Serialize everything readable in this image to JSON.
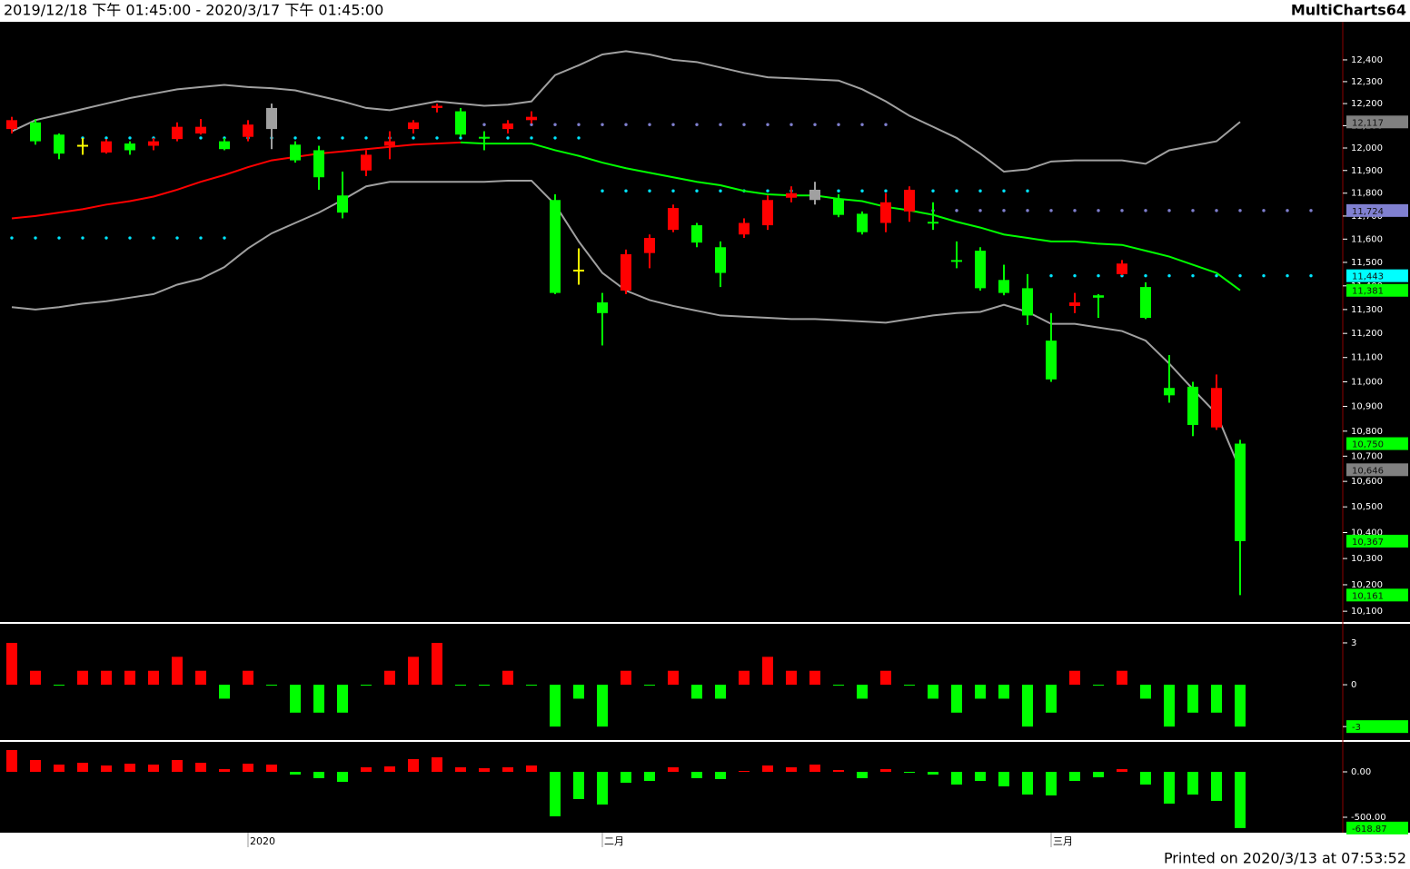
{
  "header": {
    "range": "2019/12/18 下午 01:45:00 - 2020/3/17 下午 01:45:00",
    "app": "MultiCharts64"
  },
  "footer": "Printed on 2020/3/13 at 07:53:52",
  "chart_data": [
    {
      "type": "candlestick",
      "categories": [
        null,
        null,
        null,
        null,
        null,
        null,
        null,
        null,
        null,
        null,
        "2020",
        null,
        null,
        null,
        null,
        null,
        null,
        null,
        null,
        null,
        null,
        null,
        null,
        null,
        null,
        "二月",
        null,
        null,
        null,
        null,
        null,
        null,
        null,
        null,
        null,
        null,
        null,
        null,
        null,
        null,
        null,
        null,
        null,
        null,
        "三月",
        null,
        null,
        null,
        null,
        null,
        null,
        null,
        null
      ],
      "open": [
        12085,
        12115,
        12060,
        12010,
        11980,
        12020,
        12010,
        12040,
        12065,
        12030,
        12050,
        12180,
        12015,
        11990,
        11790,
        11900,
        12010,
        12085,
        12180,
        12165,
        12050,
        12085,
        12125,
        11770,
        11465,
        11330,
        11380,
        11540,
        11640,
        11660,
        11565,
        11620,
        11660,
        11780,
        11815,
        11775,
        11710,
        11670,
        11720,
        11675,
        11510,
        11550,
        11425,
        11390,
        11170,
        11315,
        11360,
        11450,
        11395,
        10975,
        10980,
        10815,
        10750
      ],
      "high": [
        12140,
        12130,
        12065,
        12045,
        12040,
        12030,
        12045,
        12115,
        12130,
        12045,
        12125,
        12200,
        12030,
        12010,
        11895,
        11990,
        12075,
        12125,
        12200,
        12180,
        12075,
        12125,
        12165,
        11795,
        11560,
        11370,
        11555,
        11620,
        11750,
        11670,
        11590,
        11690,
        11790,
        11830,
        11850,
        11795,
        11720,
        11800,
        11830,
        11760,
        11590,
        11565,
        11490,
        11450,
        11285,
        11370,
        11365,
        11510,
        11415,
        11110,
        11000,
        11030,
        10765
      ],
      "low": [
        12065,
        12015,
        11950,
        11970,
        11975,
        11970,
        11990,
        12030,
        12060,
        11990,
        12030,
        11995,
        11935,
        11815,
        11690,
        11875,
        11950,
        12065,
        12160,
        12050,
        11990,
        12065,
        12110,
        11365,
        11405,
        11150,
        11365,
        11475,
        11630,
        11565,
        11395,
        11605,
        11640,
        11760,
        11750,
        11695,
        11620,
        11630,
        11675,
        11640,
        11475,
        11380,
        11360,
        11235,
        11000,
        11285,
        11265,
        11445,
        11260,
        10915,
        10780,
        10805,
        10161
      ],
      "close": [
        12125,
        12030,
        11975,
        12010,
        12030,
        11990,
        12030,
        12095,
        12095,
        11995,
        12105,
        12085,
        11945,
        11870,
        11715,
        11970,
        12030,
        12115,
        12190,
        12060,
        12045,
        12110,
        12140,
        11370,
        11465,
        11285,
        11535,
        11605,
        11735,
        11585,
        11455,
        11670,
        11770,
        11800,
        11770,
        11705,
        11630,
        11760,
        11815,
        11670,
        11505,
        11390,
        11370,
        11275,
        11010,
        11330,
        11350,
        11495,
        11265,
        10945,
        10825,
        10975,
        10367
      ],
      "candle_colors": [
        "#ff0000",
        "#00ff00",
        "#00ff00",
        "#ffff00",
        "#ff0000",
        "#00ff00",
        "#ff0000",
        "#ff0000",
        "#ff0000",
        "#00ff00",
        "#ff0000",
        "#a0a0a0",
        "#00ff00",
        "#00ff00",
        "#00ff00",
        "#ff0000",
        "#ff0000",
        "#ff0000",
        "#ff0000",
        "#00ff00",
        "#00ff00",
        "#ff0000",
        "#ff0000",
        "#00ff00",
        "#ffff00",
        "#00ff00",
        "#ff0000",
        "#ff0000",
        "#ff0000",
        "#00ff00",
        "#00ff00",
        "#ff0000",
        "#ff0000",
        "#ff0000",
        "#a0a0a0",
        "#00ff00",
        "#00ff00",
        "#ff0000",
        "#ff0000",
        "#00ff00",
        "#00ff00",
        "#00ff00",
        "#00ff00",
        "#00ff00",
        "#00ff00",
        "#ff0000",
        "#00ff00",
        "#ff0000",
        "#00ff00",
        "#00ff00",
        "#00ff00",
        "#ff0000",
        "#00ff00"
      ],
      "series": [
        {
          "color": "#a0a0a0",
          "values": [
            12075,
            12125,
            12150,
            12175,
            12200,
            12225,
            12245,
            12265,
            12275,
            12285,
            12275,
            12270,
            12260,
            12235,
            12210,
            12180,
            12170,
            12190,
            12210,
            12200,
            12190,
            12195,
            12210,
            12330,
            12375,
            12425,
            12440,
            12425,
            12400,
            12390,
            12365,
            12340,
            12320,
            12315,
            12310,
            12305,
            12265,
            12210,
            12145,
            12095,
            12045,
            11975,
            11895,
            11905,
            11940,
            11945,
            11945,
            11945,
            11930,
            11990,
            12010,
            12030,
            12117
          ]
        },
        {
          "color": "#a0a0a0",
          "values": [
            11310,
            11300,
            11310,
            11325,
            11335,
            11350,
            11365,
            11405,
            11430,
            11480,
            11560,
            11625,
            11670,
            11715,
            11770,
            11830,
            11850,
            11850,
            11850,
            11850,
            11850,
            11855,
            11855,
            11750,
            11590,
            11455,
            11380,
            11340,
            11315,
            11295,
            11275,
            11270,
            11265,
            11260,
            11260,
            11255,
            11250,
            11245,
            11260,
            11275,
            11285,
            11290,
            11320,
            11290,
            11240,
            11240,
            11225,
            11210,
            11170,
            11075,
            10970,
            10870,
            10646
          ]
        },
        {
          "rising_color": "#ff0000",
          "falling_color": "#00ff00",
          "values": [
            11690,
            11700,
            11715,
            11730,
            11750,
            11765,
            11785,
            11815,
            11850,
            11880,
            11915,
            11945,
            11960,
            11975,
            11985,
            11995,
            12005,
            12015,
            12020,
            12025,
            12020,
            12020,
            12020,
            11990,
            11965,
            11935,
            11910,
            11890,
            11870,
            11850,
            11835,
            11810,
            11795,
            11790,
            11790,
            11775,
            11765,
            11740,
            11725,
            11705,
            11675,
            11650,
            11620,
            11605,
            11590,
            11590,
            11580,
            11575,
            11550,
            11525,
            11490,
            11455,
            11381
          ]
        }
      ],
      "levels": [
        {
          "value": 11605,
          "color": "#00e5ff",
          "from": 0,
          "to": 9
        },
        {
          "value": 12045,
          "color": "#00e5ff",
          "from": 3,
          "to": 24
        },
        {
          "value": 12105,
          "color": "#8080d0",
          "from": 20,
          "to": 37
        },
        {
          "value": 11810,
          "color": "#00e5ff",
          "from": 25,
          "to": 43
        },
        {
          "value": 11724,
          "color": "#8080d0",
          "from": 39,
          "to": 55
        },
        {
          "value": 11443,
          "color": "#00e5ff",
          "from": 44,
          "to": 55
        }
      ],
      "ylim": [
        10063,
        12577
      ],
      "log_scale": true,
      "yticks": [
        {
          "value": 12400,
          "label": "12,400"
        },
        {
          "value": 12300,
          "label": "12,300"
        },
        {
          "value": 12200,
          "label": "12,200"
        },
        {
          "value": 12100,
          "label": "12,100"
        },
        {
          "value": 12000,
          "label": "12,000"
        },
        {
          "value": 11900,
          "label": "11,900"
        },
        {
          "value": 11800,
          "label": "11,800"
        },
        {
          "value": 11700,
          "label": "11,700"
        },
        {
          "value": 11600,
          "label": "11,600"
        },
        {
          "value": 11500,
          "label": "11,500"
        },
        {
          "value": 11400,
          "label": "11,400"
        },
        {
          "value": 11300,
          "label": "11,300"
        },
        {
          "value": 11200,
          "label": "11,200"
        },
        {
          "value": 11100,
          "label": "11,100"
        },
        {
          "value": 11000,
          "label": "11,000"
        },
        {
          "value": 10900,
          "label": "10,900"
        },
        {
          "value": 10800,
          "label": "10,800"
        },
        {
          "value": 10700,
          "label": "10,700"
        },
        {
          "value": 10600,
          "label": "10,600"
        },
        {
          "value": 10500,
          "label": "10,500"
        },
        {
          "value": 10400,
          "label": "10,400"
        },
        {
          "value": 10300,
          "label": "10,300"
        },
        {
          "value": 10200,
          "label": "10,200"
        },
        {
          "value": 10100,
          "label": "10,100"
        }
      ],
      "price_tags": [
        {
          "value": 12117,
          "label": "12,117",
          "color": "#808080"
        },
        {
          "value": 11724,
          "label": "11,724",
          "color": "#8080d0"
        },
        {
          "value": 11443,
          "label": "11,443",
          "color": "#00ffff"
        },
        {
          "value": 11381,
          "label": "11,381",
          "color": "#00ff00"
        },
        {
          "value": 10750,
          "label": "10,750",
          "color": "#00ff00"
        },
        {
          "value": 10646,
          "label": "10,646",
          "color": "#808080"
        },
        {
          "value": 10367,
          "label": "10,367",
          "color": "#00ff00"
        },
        {
          "value": 10161,
          "label": "10,161",
          "color": "#00ff00"
        }
      ]
    },
    {
      "type": "bar",
      "values": [
        3,
        1,
        0,
        1,
        1,
        1,
        1,
        2,
        1,
        -1,
        1,
        0,
        -2,
        -2,
        -2,
        0,
        1,
        2,
        3,
        0,
        0,
        1,
        0,
        -3,
        -1,
        -3,
        1,
        0,
        1,
        -1,
        -1,
        1,
        2,
        1,
        1,
        0,
        -1,
        1,
        0,
        -1,
        -2,
        -1,
        -1,
        -3,
        -2,
        1,
        0,
        1,
        -1,
        -3,
        -2,
        -2,
        -3
      ],
      "positive_color": "#ff0000",
      "negative_color": "#00ff00",
      "ylim": [
        -3.9,
        4.3
      ],
      "yticks": [
        3,
        0,
        -3
      ],
      "price_tags": [
        {
          "value": -3,
          "color": "#00ff00"
        }
      ]
    },
    {
      "type": "bar",
      "values": [
        240,
        130,
        80,
        100,
        70,
        90,
        80,
        130,
        100,
        30,
        90,
        80,
        -30,
        -70,
        -110,
        50,
        60,
        140,
        160,
        50,
        40,
        50,
        70,
        -490,
        -300,
        -360,
        -120,
        -100,
        50,
        -70,
        -80,
        10,
        70,
        50,
        80,
        20,
        -70,
        30,
        0,
        -30,
        -140,
        -100,
        -160,
        -250,
        -260,
        -100,
        -60,
        30,
        -140,
        -350,
        -250,
        -320,
        -618.87
      ],
      "positive_color": "#ff0000",
      "negative_color": "#00ff00",
      "ylim": [
        -660,
        320
      ],
      "yticks": [
        {
          "value": 0,
          "label": "0.00"
        },
        {
          "value": -500,
          "label": "-500.00"
        }
      ],
      "price_tags": [
        {
          "value": -618.87,
          "label": "-618.87",
          "color": "#00ff00"
        }
      ]
    }
  ]
}
